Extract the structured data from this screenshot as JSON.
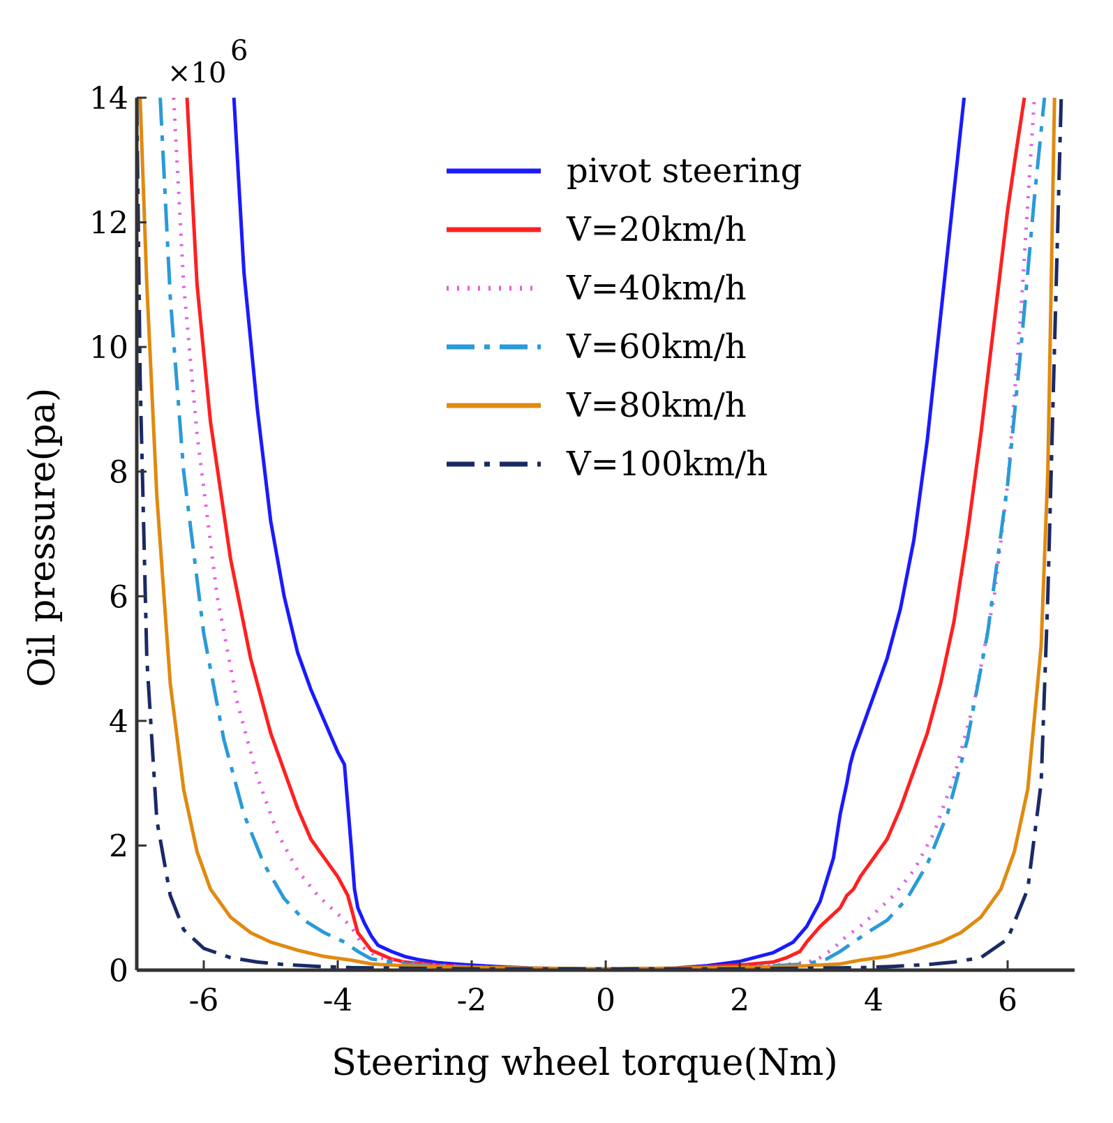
{
  "chart_data": {
    "type": "line",
    "title": "",
    "xlabel": "Steering wheel torque(Nm)",
    "ylabel": "Oil pressure(pa)",
    "y_multiplier": "×10",
    "y_multiplier_exp": "6",
    "xlim": [
      -7,
      7
    ],
    "ylim": [
      0,
      14
    ],
    "xticks": [
      -6,
      -4,
      -2,
      0,
      2,
      4,
      6
    ],
    "yticks": [
      0,
      2,
      4,
      6,
      8,
      10,
      12,
      14
    ],
    "xtick_labels": [
      "-6",
      "-4",
      "-2",
      "0",
      "2",
      "4",
      "6"
    ],
    "ytick_labels": [
      "0",
      "2",
      "4",
      "6",
      "8",
      "10",
      "12",
      "14"
    ],
    "grid": false,
    "legend_position": "top-center",
    "series": [
      {
        "name": "pivot steering",
        "color": "#1a1aff",
        "style": "solid",
        "x": [
          -5.55,
          -5.4,
          -5.2,
          -5.0,
          -4.8,
          -4.6,
          -4.4,
          -4.2,
          -4.0,
          -3.9,
          -3.8,
          -3.75,
          -3.7,
          -3.6,
          -3.5,
          -3.4,
          -3.2,
          -3.0,
          -2.8,
          -2.5,
          -2.0,
          -1.5,
          -1.0,
          -0.5,
          0,
          0.5,
          1.0,
          1.5,
          2.0,
          2.5,
          2.8,
          3.0,
          3.2,
          3.4,
          3.5,
          3.6,
          3.65,
          3.7,
          3.8,
          3.9,
          4.0,
          4.2,
          4.4,
          4.6,
          4.8,
          5.0,
          5.2,
          5.35
        ],
        "y": [
          14.0,
          11.2,
          9.0,
          7.2,
          6.0,
          5.1,
          4.5,
          4.0,
          3.5,
          3.3,
          2.0,
          1.3,
          1.0,
          0.75,
          0.55,
          0.4,
          0.3,
          0.22,
          0.17,
          0.12,
          0.08,
          0.05,
          0.03,
          0.02,
          0.02,
          0.02,
          0.03,
          0.07,
          0.14,
          0.28,
          0.45,
          0.7,
          1.1,
          1.8,
          2.5,
          3.0,
          3.3,
          3.5,
          3.8,
          4.1,
          4.4,
          5.0,
          5.8,
          6.9,
          8.5,
          10.5,
          12.5,
          14.0
        ]
      },
      {
        "name": "V=20km/h",
        "color": "#ff2020",
        "style": "solid",
        "x": [
          -6.25,
          -6.1,
          -5.9,
          -5.6,
          -5.3,
          -5.0,
          -4.8,
          -4.6,
          -4.4,
          -4.2,
          -4.0,
          -3.9,
          -3.85,
          -3.8,
          -3.7,
          -3.5,
          -3.2,
          -3.0,
          -2.5,
          -2.0,
          -1.0,
          0,
          1.0,
          2.0,
          2.5,
          2.7,
          2.9,
          3.0,
          3.2,
          3.5,
          3.6,
          3.7,
          3.8,
          4.0,
          4.2,
          4.4,
          4.6,
          4.8,
          5.0,
          5.2,
          5.4,
          5.6,
          5.8,
          6.0,
          6.15,
          6.25
        ],
        "y": [
          14.0,
          11.0,
          8.8,
          6.6,
          5.0,
          3.8,
          3.2,
          2.6,
          2.1,
          1.8,
          1.5,
          1.3,
          1.2,
          1.0,
          0.6,
          0.32,
          0.18,
          0.13,
          0.08,
          0.05,
          0.03,
          0.02,
          0.03,
          0.08,
          0.13,
          0.2,
          0.3,
          0.45,
          0.7,
          1.0,
          1.2,
          1.3,
          1.5,
          1.8,
          2.1,
          2.6,
          3.2,
          3.8,
          4.6,
          5.6,
          7.0,
          8.6,
          10.4,
          12.2,
          13.3,
          14.0
        ]
      },
      {
        "name": "V=40km/h",
        "color": "#e060e0",
        "style": "dotted",
        "x": [
          -6.45,
          -6.3,
          -6.1,
          -5.8,
          -5.5,
          -5.2,
          -4.9,
          -4.6,
          -4.3,
          -4.0,
          -3.8,
          -3.6,
          -3.4,
          -3.0,
          -2.5,
          -2.0,
          -1.0,
          0,
          1.0,
          2.0,
          2.5,
          3.0,
          3.2,
          3.4,
          3.6,
          3.8,
          4.0,
          4.3,
          4.6,
          4.9,
          5.2,
          5.5,
          5.8,
          6.0,
          6.2,
          6.4
        ],
        "y": [
          14.0,
          11.0,
          8.6,
          6.0,
          4.3,
          3.1,
          2.2,
          1.6,
          1.2,
          0.9,
          0.7,
          0.35,
          0.2,
          0.12,
          0.08,
          0.05,
          0.03,
          0.02,
          0.03,
          0.05,
          0.08,
          0.12,
          0.2,
          0.35,
          0.55,
          0.7,
          0.9,
          1.2,
          1.6,
          2.2,
          3.1,
          4.3,
          6.0,
          7.8,
          10.6,
          14.0
        ]
      },
      {
        "name": "V=60km/h",
        "color": "#2a9ad8",
        "style": "dashdot",
        "x": [
          -6.65,
          -6.5,
          -6.3,
          -6.0,
          -5.7,
          -5.4,
          -5.1,
          -4.8,
          -4.5,
          -4.2,
          -3.9,
          -3.7,
          -3.5,
          -3.0,
          -2.5,
          -2.0,
          -1.0,
          0,
          1.0,
          2.0,
          2.5,
          3.0,
          3.3,
          3.5,
          3.7,
          3.9,
          4.2,
          4.5,
          4.8,
          5.1,
          5.4,
          5.7,
          6.0,
          6.2,
          6.4,
          6.55
        ],
        "y": [
          14.0,
          10.8,
          8.0,
          5.4,
          3.7,
          2.5,
          1.7,
          1.15,
          0.8,
          0.6,
          0.45,
          0.3,
          0.18,
          0.1,
          0.07,
          0.05,
          0.03,
          0.02,
          0.03,
          0.05,
          0.07,
          0.1,
          0.18,
          0.3,
          0.45,
          0.6,
          0.8,
          1.15,
          1.7,
          2.5,
          3.7,
          5.4,
          7.8,
          10.0,
          12.4,
          14.0
        ]
      },
      {
        "name": "V=80km/h",
        "color": "#e08a10",
        "style": "solid",
        "x": [
          -6.95,
          -6.85,
          -6.7,
          -6.5,
          -6.3,
          -6.1,
          -5.9,
          -5.6,
          -5.3,
          -5.0,
          -4.6,
          -4.2,
          -3.8,
          -3.5,
          -3.0,
          -2.0,
          -1.0,
          0,
          1.0,
          2.0,
          3.0,
          3.5,
          3.8,
          4.2,
          4.6,
          5.0,
          5.3,
          5.6,
          5.9,
          6.1,
          6.3,
          6.5,
          6.6,
          6.7
        ],
        "y": [
          14.0,
          11.0,
          7.6,
          4.6,
          2.9,
          1.9,
          1.3,
          0.85,
          0.6,
          0.45,
          0.32,
          0.22,
          0.16,
          0.1,
          0.07,
          0.04,
          0.03,
          0.02,
          0.03,
          0.04,
          0.07,
          0.1,
          0.16,
          0.22,
          0.32,
          0.45,
          0.6,
          0.85,
          1.3,
          1.9,
          2.9,
          5.2,
          8.0,
          14.0
        ]
      },
      {
        "name": "V=100km/h",
        "color": "#1a2a66",
        "style": "dashdot",
        "x": [
          -7.0,
          -6.95,
          -6.85,
          -6.7,
          -6.5,
          -6.3,
          -6.0,
          -5.6,
          -5.2,
          -4.8,
          -4.3,
          -3.8,
          -3.0,
          -2.0,
          -1.0,
          0,
          1.0,
          2.0,
          3.0,
          3.8,
          4.3,
          4.8,
          5.2,
          5.6,
          6.0,
          6.3,
          6.5,
          6.6,
          6.7,
          6.8
        ],
        "y": [
          14.0,
          9.5,
          5.0,
          2.4,
          1.2,
          0.65,
          0.35,
          0.2,
          0.13,
          0.09,
          0.06,
          0.04,
          0.03,
          0.02,
          0.02,
          0.02,
          0.02,
          0.02,
          0.03,
          0.04,
          0.06,
          0.09,
          0.13,
          0.2,
          0.5,
          1.3,
          3.0,
          6.0,
          10.0,
          14.0
        ]
      }
    ]
  }
}
